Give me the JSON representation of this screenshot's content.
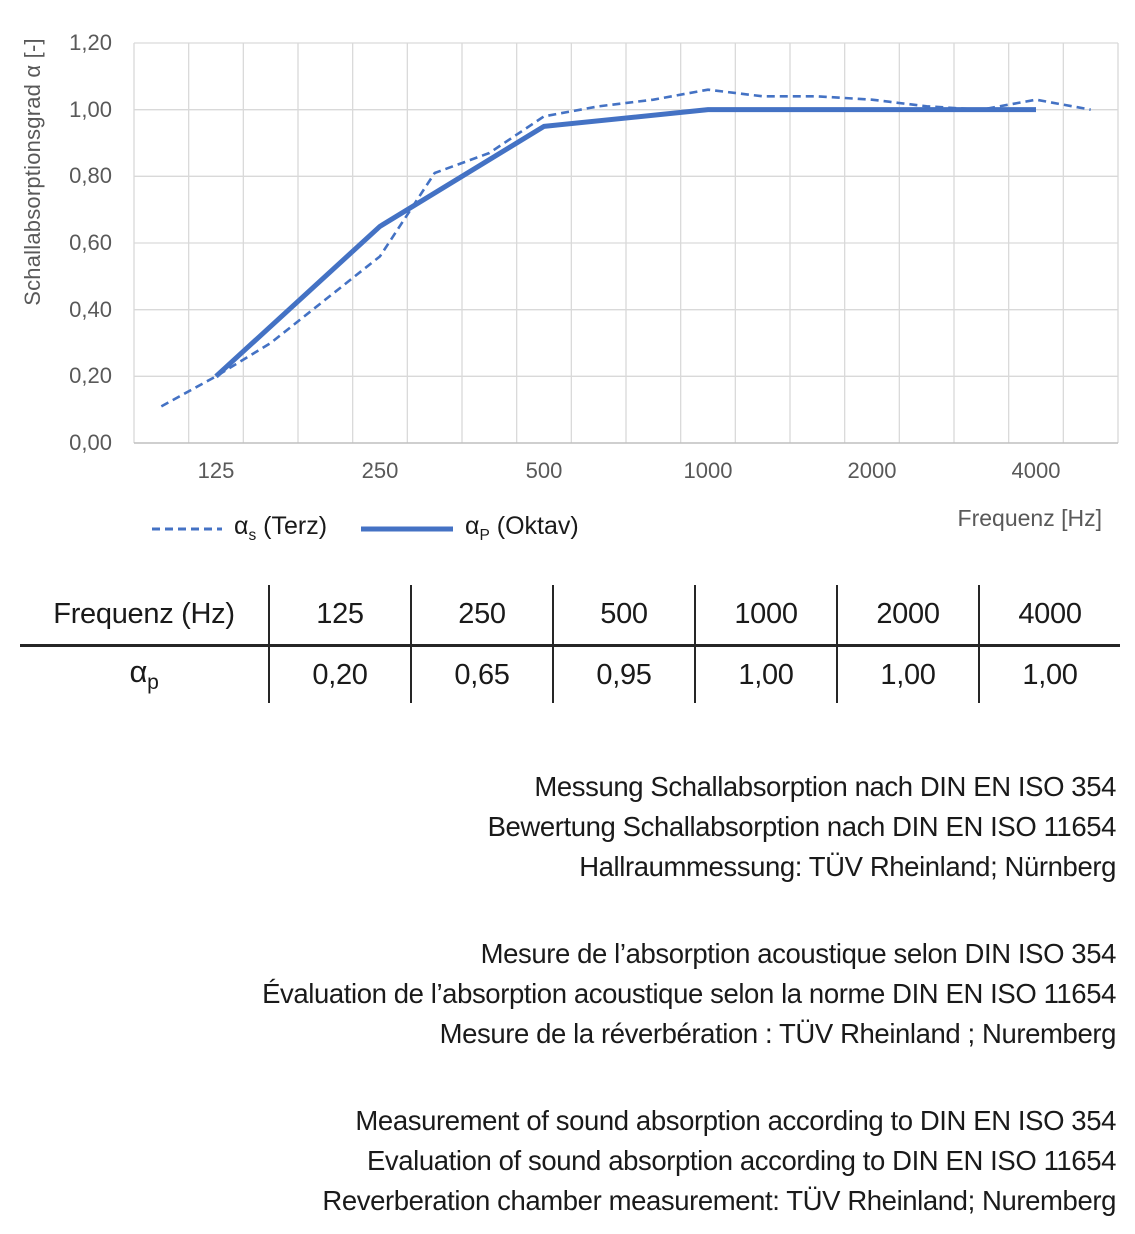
{
  "colors": {
    "series_blue": "#4472C4",
    "grid": "#D9D9D9",
    "axis_line": "#BFBFBF",
    "axis_text": "#595959",
    "text": "#1A1A1A"
  },
  "chart": {
    "ylabel": "Schallabsorptionsgrad α [-]",
    "xlabel": "Frequenz [Hz]",
    "legend": [
      {
        "symbol": "α",
        "sub": "s",
        "rest": " (Terz)",
        "style": "dashed"
      },
      {
        "symbol": "α",
        "sub": "P",
        "rest": " (Oktav)",
        "style": "solid"
      }
    ]
  },
  "chart_data": {
    "type": "line",
    "title": "",
    "ylabel": "Schallabsorptionsgrad α [-]",
    "xlabel": "Frequenz [Hz]",
    "ylim": [
      0,
      1.2
    ],
    "ytick_step": 0.2,
    "ytick_labels": [
      "0,00",
      "0,20",
      "0,40",
      "0,60",
      "0,80",
      "1,00",
      "1,20"
    ],
    "x_categories": [
      "100",
      "125",
      "160",
      "200",
      "250",
      "315",
      "400",
      "500",
      "630",
      "800",
      "1000",
      "1250",
      "1600",
      "2000",
      "2500",
      "3150",
      "4000",
      "5000"
    ],
    "x_axis_labels": [
      "125",
      "250",
      "500",
      "1000",
      "2000",
      "4000"
    ],
    "grid": true,
    "legend_position": "bottom-left",
    "series": [
      {
        "name": "αs (Terz)",
        "style": "dashed",
        "x": [
          "100",
          "125",
          "160",
          "200",
          "250",
          "315",
          "400",
          "500",
          "630",
          "800",
          "1000",
          "1250",
          "1600",
          "2000",
          "2500",
          "3150",
          "4000",
          "5000"
        ],
        "values": [
          0.11,
          0.2,
          0.3,
          0.43,
          0.56,
          0.81,
          0.87,
          0.98,
          1.01,
          1.03,
          1.06,
          1.04,
          1.04,
          1.03,
          1.01,
          1.0,
          1.03,
          1.0
        ]
      },
      {
        "name": "αP (Oktav)",
        "style": "solid",
        "x": [
          "125",
          "250",
          "500",
          "1000",
          "2000",
          "4000"
        ],
        "values": [
          0.2,
          0.65,
          0.95,
          1.0,
          1.0,
          1.0
        ]
      }
    ]
  },
  "table": {
    "header_label": "Frequenz (Hz)",
    "header_values": [
      "125",
      "250",
      "500",
      "1000",
      "2000",
      "4000"
    ],
    "row_label": {
      "symbol": "α",
      "sub": "p"
    },
    "row_values": [
      "0,20",
      "0,65",
      "0,95",
      "1,00",
      "1,00",
      "1,00"
    ]
  },
  "notes": {
    "de": {
      "lines": [
        "Messung Schallabsorption nach DIN EN ISO 354",
        "Bewertung Schallabsorption nach DIN EN ISO 11654",
        "Hallraummessung: TÜV Rheinland; Nürnberg"
      ]
    },
    "fr": {
      "lines": [
        "Mesure de l’absorption acoustique selon DIN ISO 354",
        "Évaluation de l’absorption acoustique selon la norme DIN EN ISO 11654",
        "Mesure de la réverbération : TÜV Rheinland ; Nuremberg"
      ]
    },
    "en": {
      "lines": [
        "Measurement of sound absorption according to DIN EN ISO 354",
        "Evaluation of sound absorption according to DIN EN ISO 11654",
        "Reverberation chamber measurement: TÜV Rheinland; Nuremberg"
      ]
    }
  }
}
